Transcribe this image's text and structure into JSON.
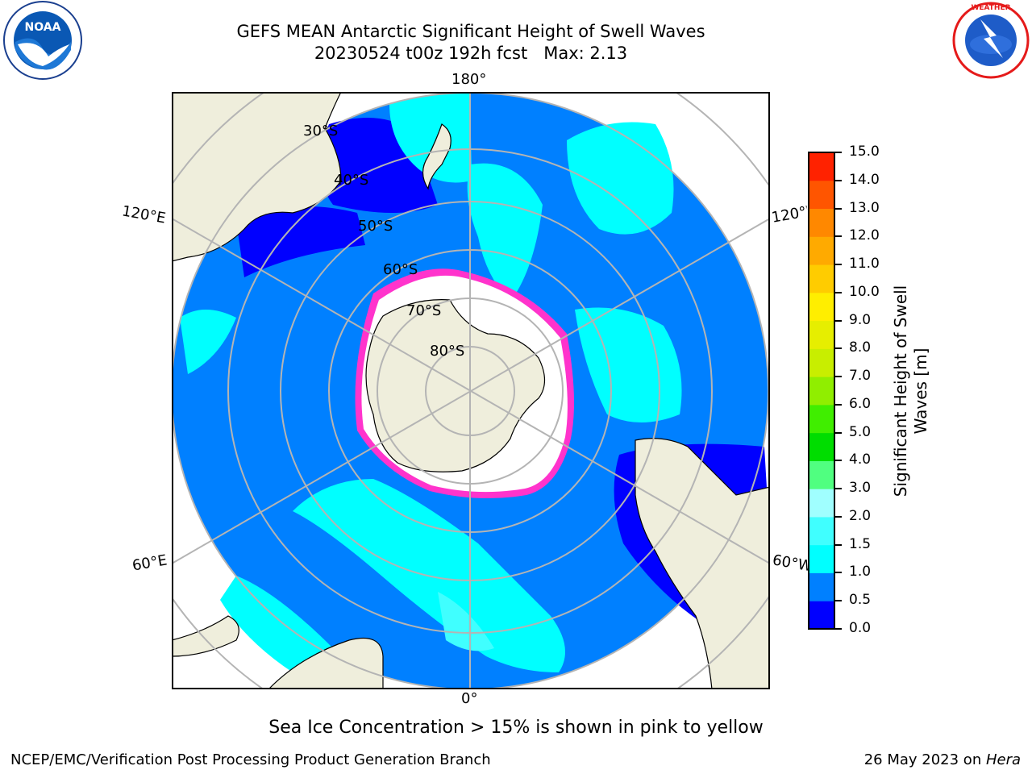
{
  "title": {
    "line1": "GEFS MEAN Antarctic Significant Height of Swell Waves",
    "line2": "20230524 t00z 192h fcst   Max: 2.13"
  },
  "logos": {
    "left": "NOAA",
    "right": "NATIONAL WEATHER SERVICE"
  },
  "map": {
    "projection": "south-polar-stereographic",
    "longitude_labels": {
      "top": "180°",
      "bottom": "0°",
      "left_upper": "120°E",
      "left_lower": "60°E",
      "right_upper": "120°W",
      "right_lower": "60°W"
    },
    "latitude_labels": [
      "30°S",
      "40°S",
      "50°S",
      "60°S",
      "70°S",
      "80°S"
    ],
    "colors": {
      "land": "#efeedc",
      "ice_shelf": "#ffffff",
      "grid": "#b4b4b4",
      "sea_ice_edge": "#ff33cc"
    }
  },
  "colorbar": {
    "label": "Significant Height of Swell Waves [m]",
    "label_line1": "Significant Height of Swell",
    "label_line2": "Waves [m]",
    "ticks": [
      "0.0",
      "0.5",
      "1.0",
      "1.5",
      "2.0",
      "3.0",
      "4.0",
      "5.0",
      "6.0",
      "7.0",
      "8.0",
      "9.0",
      "10.0",
      "11.0",
      "12.0",
      "13.0",
      "14.0",
      "15.0"
    ],
    "colors": [
      "#0000ff",
      "#0080ff",
      "#00ffff",
      "#40ffff",
      "#a0ffff",
      "#50ff80",
      "#00dd00",
      "#40ee00",
      "#90ee00",
      "#c8ee00",
      "#e6ee00",
      "#ffee00",
      "#ffcc00",
      "#ffaa00",
      "#ff8800",
      "#ff5500",
      "#ff2200"
    ]
  },
  "footer": {
    "note": "Sea Ice Concentration > 15% is shown in pink to yellow",
    "left": "NCEP/EMC/Verification Post Processing Product Generation Branch",
    "right_date": "26 May 2023 on ",
    "right_machine": "Hera"
  }
}
